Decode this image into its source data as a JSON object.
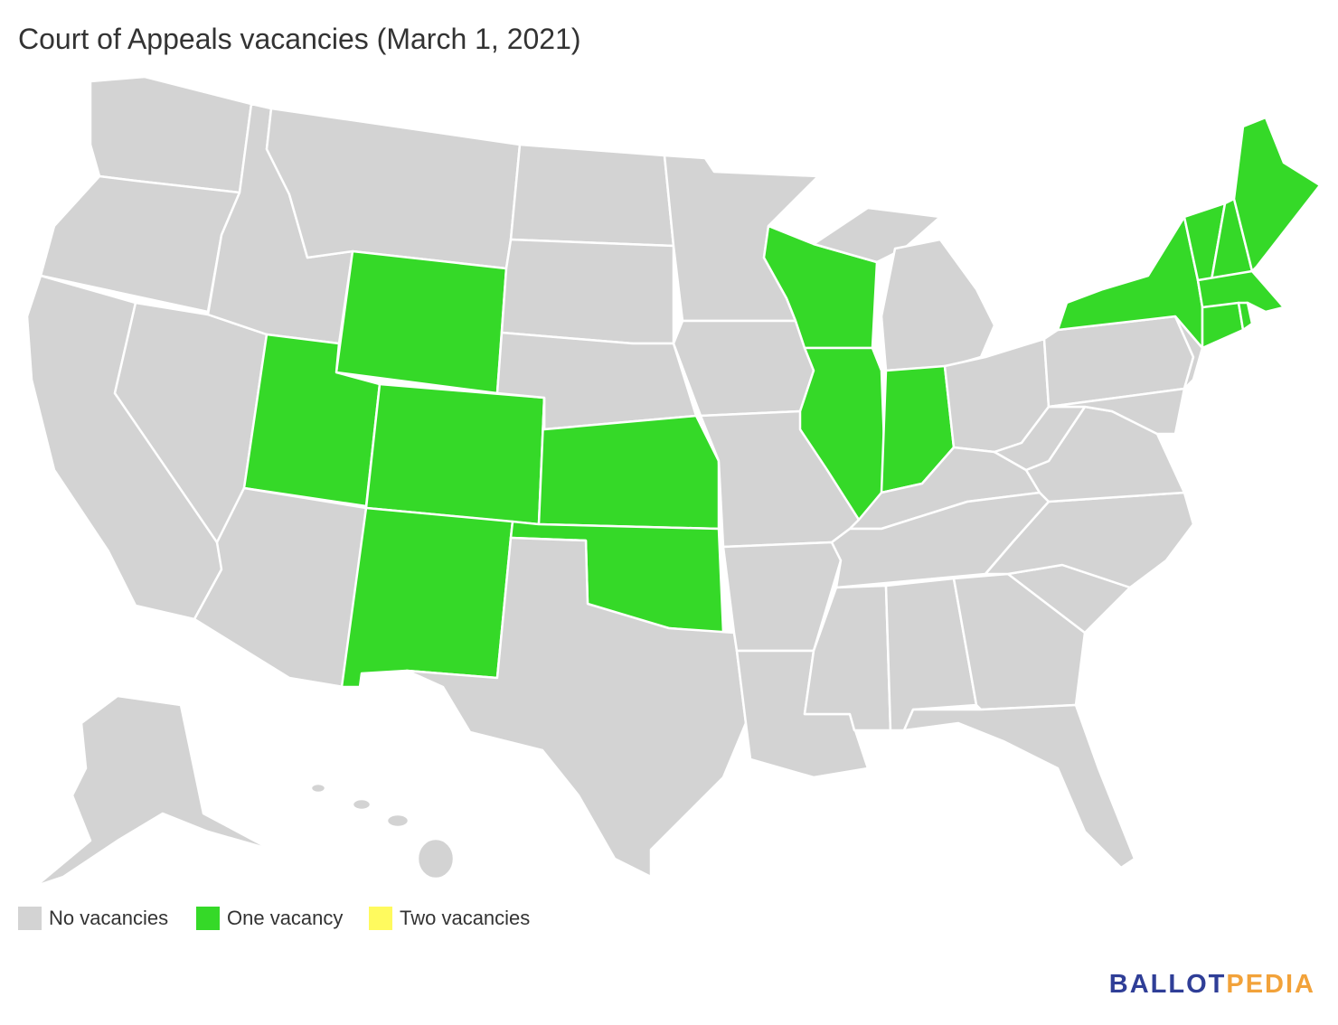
{
  "title": "Court of Appeals vacancies (March 1, 2021)",
  "legend": {
    "items": [
      {
        "label": "No vacancies",
        "color": "#d3d3d3"
      },
      {
        "label": "One vacancy",
        "color": "#35d928"
      },
      {
        "label": "Two vacancies",
        "color": "#fffa5e"
      }
    ]
  },
  "logo": {
    "parts": [
      {
        "text": "BALLOT",
        "color": "#2f3e97"
      },
      {
        "text": "PEDIA",
        "color": "#f2a23a"
      }
    ]
  }
}
